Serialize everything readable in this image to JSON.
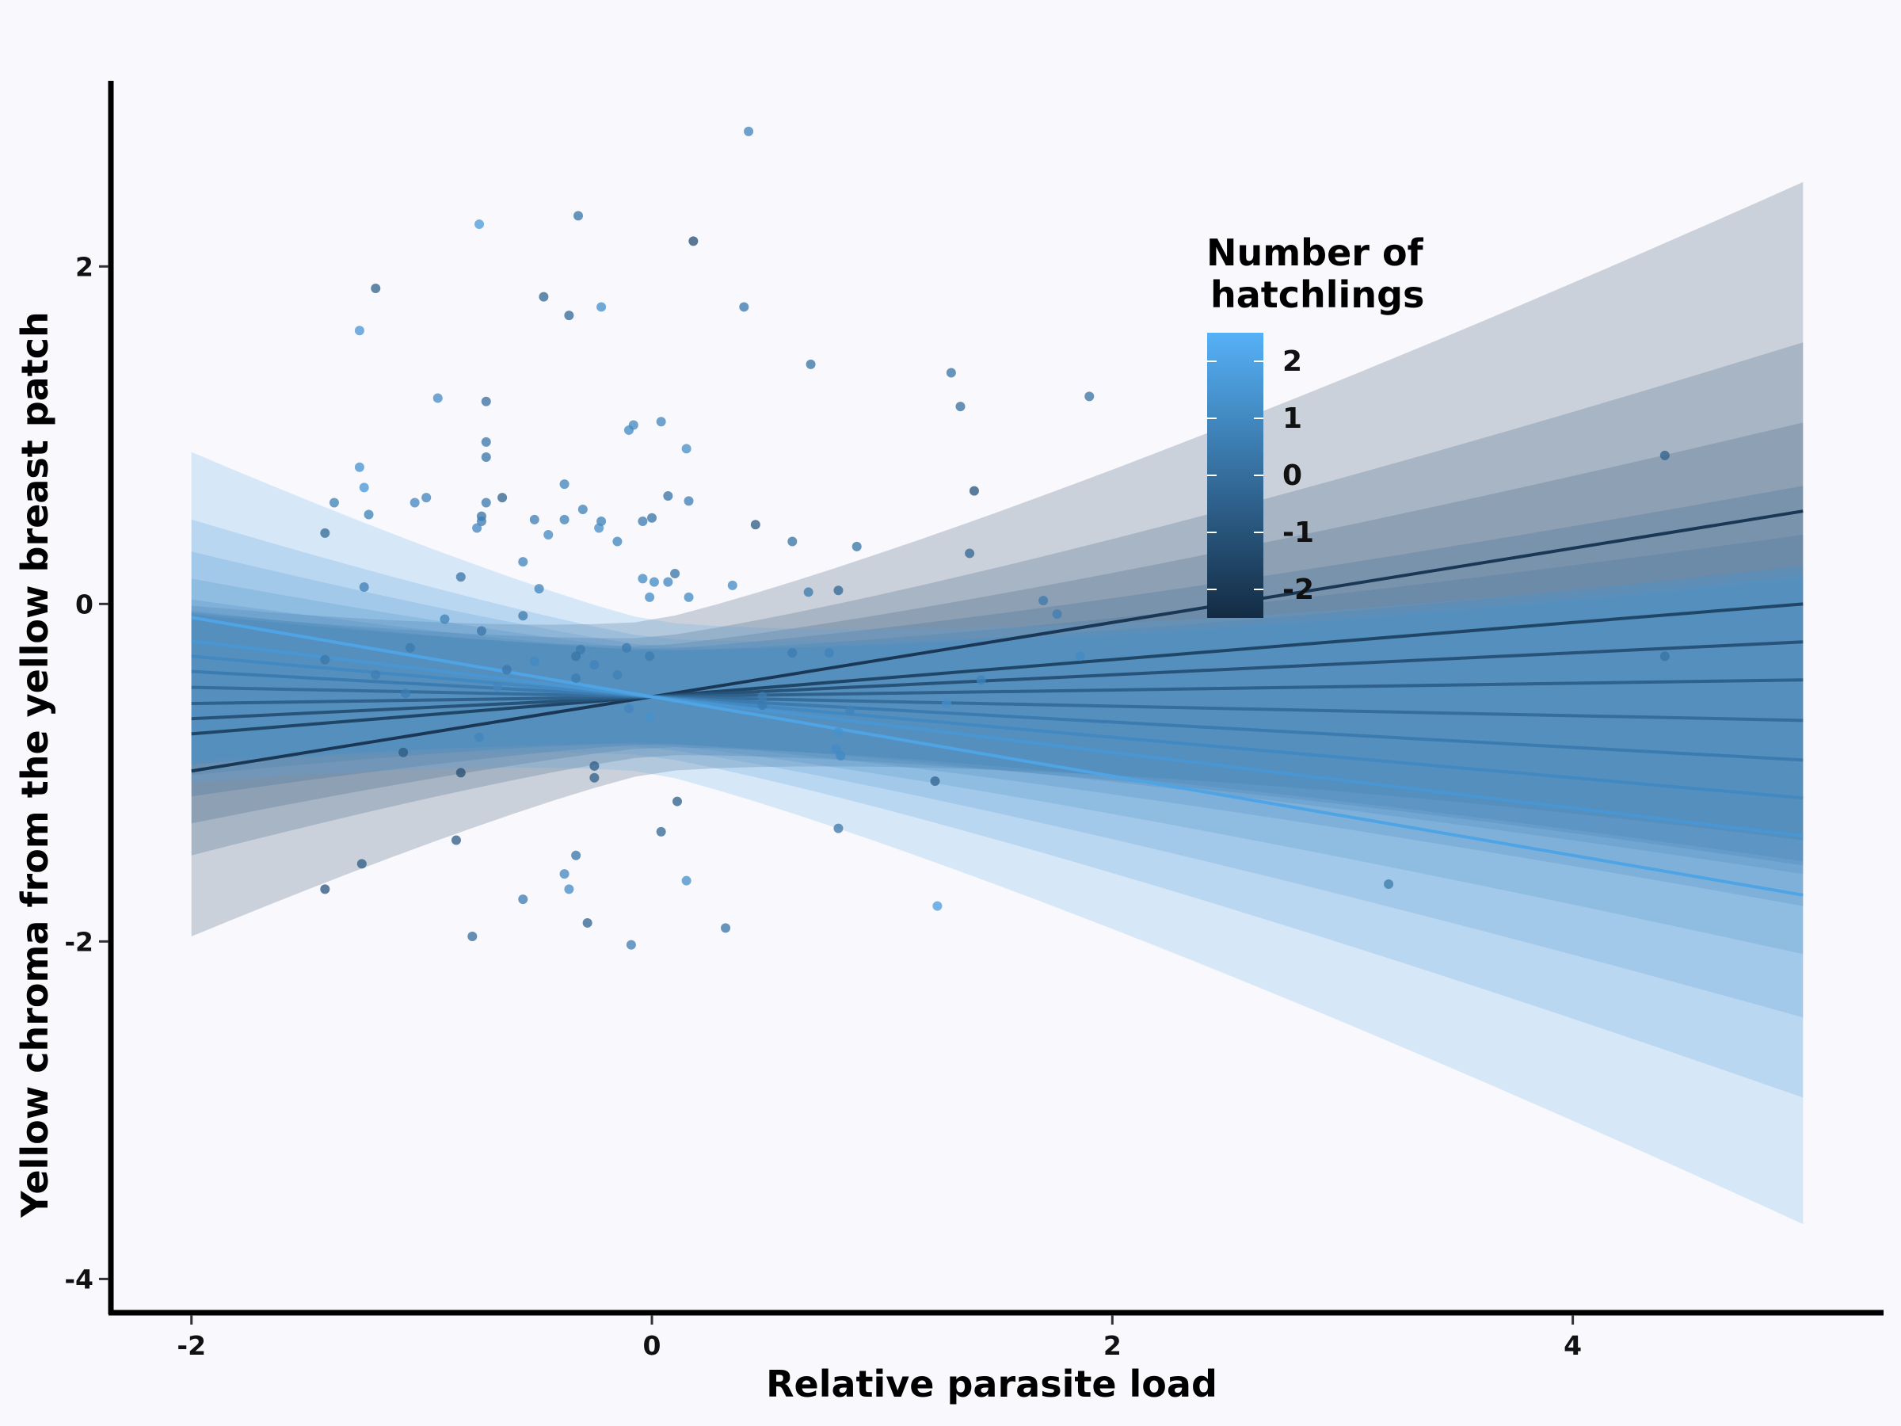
{
  "chart_data": {
    "type": "line",
    "xlabel": "Relative parasite load",
    "ylabel": "Yellow chroma from the yellow breast patch",
    "xlim": [
      -2.35,
      5.35
    ],
    "ylim": [
      -4.2,
      3.1
    ],
    "x_ticks": [
      -2,
      0,
      2,
      4
    ],
    "y_ticks": [
      -4,
      -2,
      0,
      2
    ],
    "grid": false,
    "legend": {
      "title_lines": [
        "Number of",
        "hatchlings"
      ],
      "position": "top-right-inside",
      "range": [
        -2.5,
        2.5
      ],
      "ticks": [
        2,
        1,
        0,
        -1,
        -2
      ],
      "color_low": "#132b43",
      "color_high": "#56b1f7"
    },
    "fit_x_range": [
      -2,
      5
    ],
    "series": [
      {
        "name": "-2",
        "intercept": -0.55,
        "slope": 0.22,
        "ribbon_half_width": {
          "at_-2": 0.98,
          "at_0": 0.45,
          "at_5": 1.95
        }
      },
      {
        "name": "-1.5",
        "intercept": -0.55,
        "slope": 0.11,
        "ribbon_half_width": {
          "at_-2": 0.72,
          "at_0": 0.35,
          "at_5": 1.55
        }
      },
      {
        "name": "-1",
        "intercept": -0.55,
        "slope": 0.065,
        "ribbon_half_width": {
          "at_-2": 0.62,
          "at_0": 0.3,
          "at_5": 1.3
        }
      },
      {
        "name": "-0.5",
        "intercept": -0.55,
        "slope": 0.02,
        "ribbon_half_width": {
          "at_-2": 0.55,
          "at_0": 0.28,
          "at_5": 1.15
        }
      },
      {
        "name": "0",
        "intercept": -0.55,
        "slope": -0.028,
        "ribbon_half_width": {
          "at_-2": 0.52,
          "at_0": 0.27,
          "at_5": 1.1
        }
      },
      {
        "name": "0.5",
        "intercept": -0.55,
        "slope": -0.075,
        "ribbon_half_width": {
          "at_-2": 0.55,
          "at_0": 0.28,
          "at_5": 1.15
        }
      },
      {
        "name": "1",
        "intercept": -0.55,
        "slope": -0.12,
        "ribbon_half_width": {
          "at_-2": 0.62,
          "at_0": 0.3,
          "at_5": 1.3
        }
      },
      {
        "name": "1.5",
        "intercept": -0.55,
        "slope": -0.165,
        "ribbon_half_width": {
          "at_-2": 0.72,
          "at_0": 0.35,
          "at_5": 1.55
        }
      },
      {
        "name": "2",
        "intercept": -0.55,
        "slope": -0.235,
        "ribbon_half_width": {
          "at_-2": 0.98,
          "at_0": 0.45,
          "at_5": 1.95
        }
      }
    ],
    "points": [
      {
        "x": 0.42,
        "y": 2.8,
        "c": 0.8
      },
      {
        "x": -0.32,
        "y": 2.3,
        "c": 0.2
      },
      {
        "x": -0.75,
        "y": 2.25,
        "c": 1.6
      },
      {
        "x": 0.18,
        "y": 2.15,
        "c": -1.2
      },
      {
        "x": -1.2,
        "y": 1.87,
        "c": -0.5
      },
      {
        "x": -0.47,
        "y": 1.82,
        "c": -0.3
      },
      {
        "x": -0.22,
        "y": 1.76,
        "c": 1.2
      },
      {
        "x": 0.4,
        "y": 1.76,
        "c": 0.3
      },
      {
        "x": -0.36,
        "y": 1.71,
        "c": -0.2
      },
      {
        "x": -1.27,
        "y": 1.62,
        "c": 1.5
      },
      {
        "x": 0.69,
        "y": 1.42,
        "c": 0.1
      },
      {
        "x": 1.3,
        "y": 1.37,
        "c": 0.2
      },
      {
        "x": 1.9,
        "y": 1.23,
        "c": 0.1
      },
      {
        "x": -0.93,
        "y": 1.22,
        "c": 1.1
      },
      {
        "x": -0.72,
        "y": 1.2,
        "c": 0.0
      },
      {
        "x": 1.34,
        "y": 1.17,
        "c": 0.0
      },
      {
        "x": 0.04,
        "y": 1.08,
        "c": 0.9
      },
      {
        "x": -0.08,
        "y": 1.06,
        "c": 0.9
      },
      {
        "x": -0.1,
        "y": 1.03,
        "c": 1.0
      },
      {
        "x": -0.72,
        "y": 0.96,
        "c": 0.3
      },
      {
        "x": 0.15,
        "y": 0.92,
        "c": 1.2
      },
      {
        "x": -0.72,
        "y": 0.87,
        "c": 0.2
      },
      {
        "x": 4.4,
        "y": 0.88,
        "c": -0.5
      },
      {
        "x": -1.27,
        "y": 0.81,
        "c": 1.3
      },
      {
        "x": -0.38,
        "y": 0.71,
        "c": 0.8
      },
      {
        "x": -1.25,
        "y": 0.69,
        "c": 1.5
      },
      {
        "x": 1.4,
        "y": 0.67,
        "c": -1.0
      },
      {
        "x": 0.07,
        "y": 0.64,
        "c": 0.1
      },
      {
        "x": -0.65,
        "y": 0.63,
        "c": -0.5
      },
      {
        "x": -0.98,
        "y": 0.63,
        "c": 0.8
      },
      {
        "x": -1.38,
        "y": 0.6,
        "c": 0.7
      },
      {
        "x": -1.03,
        "y": 0.6,
        "c": 0.9
      },
      {
        "x": -0.72,
        "y": 0.6,
        "c": 0.4
      },
      {
        "x": 0.16,
        "y": 0.61,
        "c": 0.6
      },
      {
        "x": -0.3,
        "y": 0.56,
        "c": 0.7
      },
      {
        "x": -1.23,
        "y": 0.53,
        "c": 0.7
      },
      {
        "x": -0.74,
        "y": 0.52,
        "c": 0.1
      },
      {
        "x": -0.74,
        "y": 0.49,
        "c": 0.5
      },
      {
        "x": -0.51,
        "y": 0.5,
        "c": 0.6
      },
      {
        "x": -0.38,
        "y": 0.5,
        "c": 0.7
      },
      {
        "x": -0.22,
        "y": 0.49,
        "c": 0.7
      },
      {
        "x": -0.04,
        "y": 0.49,
        "c": 0.5
      },
      {
        "x": 0.0,
        "y": 0.51,
        "c": 0.1
      },
      {
        "x": 0.45,
        "y": 0.47,
        "c": -0.8
      },
      {
        "x": -0.23,
        "y": 0.45,
        "c": 1.2
      },
      {
        "x": -0.76,
        "y": 0.45,
        "c": 0.9
      },
      {
        "x": -1.42,
        "y": 0.42,
        "c": -0.2
      },
      {
        "x": -0.45,
        "y": 0.41,
        "c": 1.0
      },
      {
        "x": -0.15,
        "y": 0.37,
        "c": 0.8
      },
      {
        "x": 0.61,
        "y": 0.37,
        "c": 0.1
      },
      {
        "x": 0.89,
        "y": 0.34,
        "c": 0.2
      },
      {
        "x": 1.38,
        "y": 0.3,
        "c": -0.3
      },
      {
        "x": -0.56,
        "y": 0.25,
        "c": 0.8
      },
      {
        "x": 0.1,
        "y": 0.18,
        "c": 0.2
      },
      {
        "x": -0.83,
        "y": 0.16,
        "c": 0.2
      },
      {
        "x": -0.04,
        "y": 0.15,
        "c": 1.0
      },
      {
        "x": 0.01,
        "y": 0.13,
        "c": 1.0
      },
      {
        "x": 0.07,
        "y": 0.13,
        "c": 0.9
      },
      {
        "x": 0.35,
        "y": 0.11,
        "c": 1.0
      },
      {
        "x": -1.25,
        "y": 0.1,
        "c": 0.6
      },
      {
        "x": -0.49,
        "y": 0.09,
        "c": 0.8
      },
      {
        "x": 0.68,
        "y": 0.07,
        "c": 0.4
      },
      {
        "x": 0.81,
        "y": 0.08,
        "c": -0.3
      },
      {
        "x": 0.16,
        "y": 0.04,
        "c": 1.0
      },
      {
        "x": -0.01,
        "y": 0.04,
        "c": 1.1
      },
      {
        "x": 1.7,
        "y": 0.02,
        "c": 0.4
      },
      {
        "x": 1.76,
        "y": -0.06,
        "c": 0.6
      },
      {
        "x": -0.56,
        "y": -0.07,
        "c": 0.4
      },
      {
        "x": -0.9,
        "y": -0.09,
        "c": 0.7
      },
      {
        "x": -0.74,
        "y": -0.16,
        "c": 0.3
      },
      {
        "x": -1.05,
        "y": -0.26,
        "c": 0.4
      },
      {
        "x": -0.31,
        "y": -0.27,
        "c": 0.4
      },
      {
        "x": -0.11,
        "y": -0.26,
        "c": 0.5
      },
      {
        "x": 0.61,
        "y": -0.29,
        "c": 0.5
      },
      {
        "x": 0.77,
        "y": -0.29,
        "c": 0.8
      },
      {
        "x": 1.86,
        "y": -0.31,
        "c": 1.0
      },
      {
        "x": -0.33,
        "y": -0.31,
        "c": 0.2
      },
      {
        "x": -0.01,
        "y": -0.31,
        "c": 0.5
      },
      {
        "x": 4.4,
        "y": -0.31,
        "c": 0.1
      },
      {
        "x": -1.42,
        "y": -0.33,
        "c": 0.3
      },
      {
        "x": -0.51,
        "y": -0.34,
        "c": 1.0
      },
      {
        "x": -0.25,
        "y": -0.36,
        "c": 0.8
      },
      {
        "x": -0.63,
        "y": -0.39,
        "c": 0.3
      },
      {
        "x": -1.2,
        "y": -0.42,
        "c": 0.6
      },
      {
        "x": -0.15,
        "y": -0.42,
        "c": 0.7
      },
      {
        "x": -0.33,
        "y": -0.44,
        "c": 0.5
      },
      {
        "x": 1.43,
        "y": -0.45,
        "c": 0.8
      },
      {
        "x": -0.67,
        "y": -0.49,
        "c": 0.9
      },
      {
        "x": -1.07,
        "y": -0.53,
        "c": 0.6
      },
      {
        "x": 0.48,
        "y": -0.55,
        "c": 0.6
      },
      {
        "x": 1.28,
        "y": -0.59,
        "c": 1.2
      },
      {
        "x": 0.48,
        "y": -0.6,
        "c": 0.5
      },
      {
        "x": -0.1,
        "y": -0.62,
        "c": 0.9
      },
      {
        "x": 0.86,
        "y": -0.63,
        "c": 0.8
      },
      {
        "x": -0.01,
        "y": -0.67,
        "c": 1.3
      },
      {
        "x": 0.81,
        "y": -0.76,
        "c": 1.3
      },
      {
        "x": -0.75,
        "y": -0.79,
        "c": 0.9
      },
      {
        "x": 0.8,
        "y": -0.86,
        "c": 1.1
      },
      {
        "x": -1.08,
        "y": -0.88,
        "c": -0.8
      },
      {
        "x": 0.82,
        "y": -0.9,
        "c": 1.0
      },
      {
        "x": -0.25,
        "y": -0.96,
        "c": -0.6
      },
      {
        "x": -0.83,
        "y": -1.0,
        "c": -1.2
      },
      {
        "x": -0.25,
        "y": -1.03,
        "c": -0.6
      },
      {
        "x": 1.23,
        "y": -1.05,
        "c": -0.4
      },
      {
        "x": 0.11,
        "y": -1.17,
        "c": -0.6
      },
      {
        "x": 0.81,
        "y": -1.33,
        "c": 0.3
      },
      {
        "x": 0.04,
        "y": -1.35,
        "c": -0.3
      },
      {
        "x": -0.85,
        "y": -1.4,
        "c": -0.7
      },
      {
        "x": -0.33,
        "y": -1.49,
        "c": 0.2
      },
      {
        "x": -1.26,
        "y": -1.54,
        "c": -0.7
      },
      {
        "x": -0.38,
        "y": -1.6,
        "c": 0.9
      },
      {
        "x": 0.15,
        "y": -1.64,
        "c": 1.2
      },
      {
        "x": 3.2,
        "y": -1.66,
        "c": 0.4
      },
      {
        "x": -1.42,
        "y": -1.69,
        "c": -1.0
      },
      {
        "x": -0.36,
        "y": -1.69,
        "c": 1.1
      },
      {
        "x": -0.56,
        "y": -1.75,
        "c": 0.5
      },
      {
        "x": 1.24,
        "y": -1.79,
        "c": 1.7
      },
      {
        "x": -0.28,
        "y": -1.89,
        "c": -0.4
      },
      {
        "x": 0.32,
        "y": -1.92,
        "c": 0.2
      },
      {
        "x": -0.78,
        "y": -1.97,
        "c": -0.1
      },
      {
        "x": -0.09,
        "y": -2.02,
        "c": 0.6
      }
    ]
  }
}
